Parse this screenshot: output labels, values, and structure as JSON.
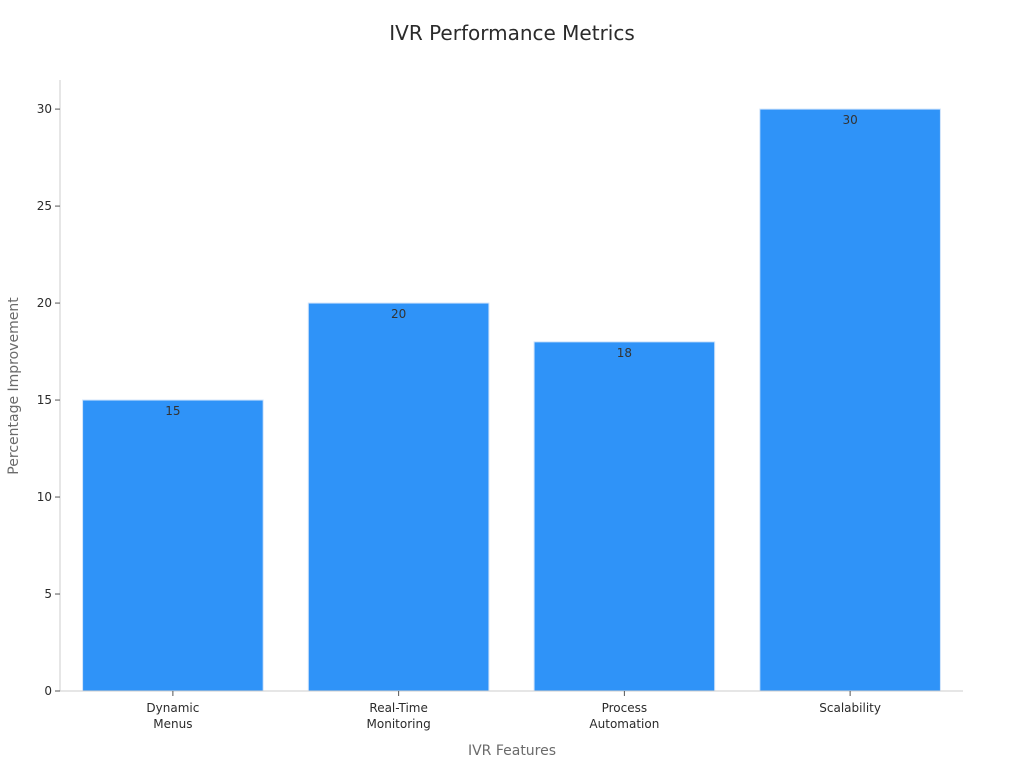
{
  "chart_data": {
    "type": "bar",
    "title": "IVR Performance Metrics",
    "xlabel": "IVR Features",
    "ylabel": "Percentage Improvement",
    "categories": [
      [
        "Dynamic",
        "Menus"
      ],
      [
        "Real-Time",
        "Monitoring"
      ],
      [
        "Process",
        "Automation"
      ],
      [
        "Scalability"
      ]
    ],
    "values": [
      15,
      20,
      18,
      30
    ],
    "ylim": [
      0,
      31.5
    ],
    "yticks": [
      0,
      5,
      10,
      15,
      20,
      25,
      30
    ],
    "grid": false,
    "bar_color": "#2f93f8",
    "bar_edge_color": "#cfe3fb"
  }
}
